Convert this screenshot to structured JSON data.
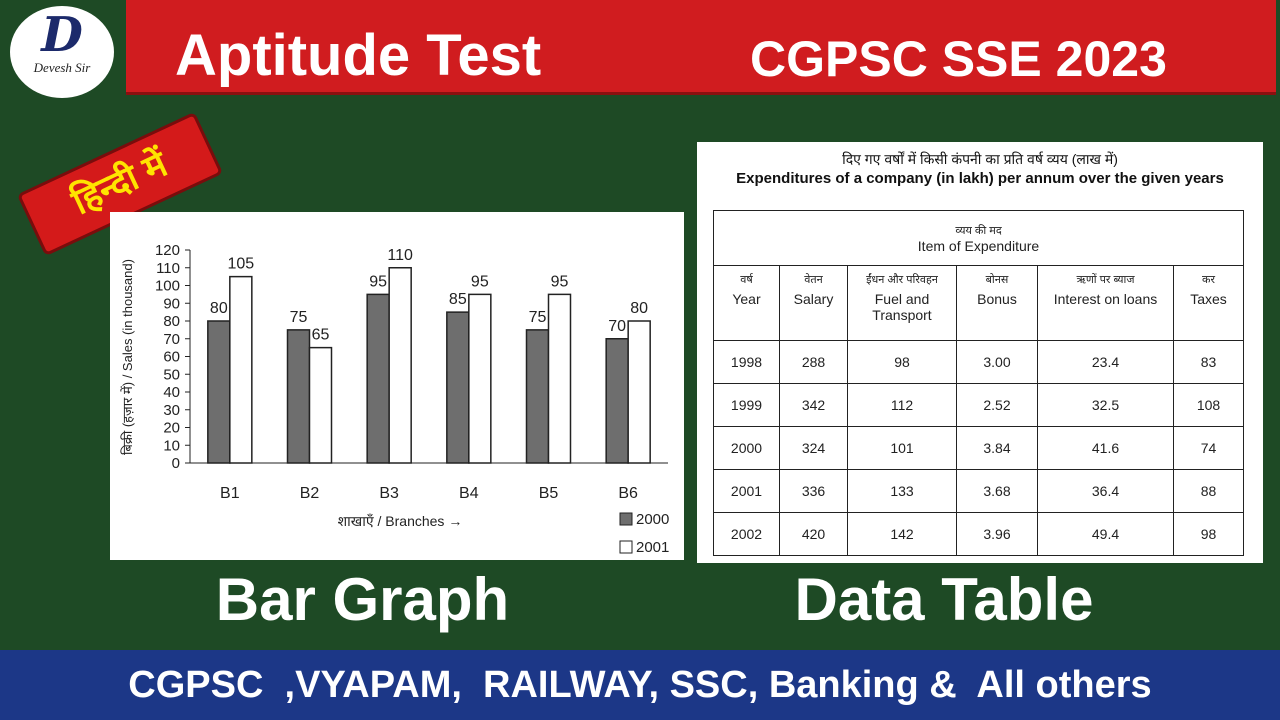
{
  "header": {
    "title": "Aptitude Test",
    "exam": "CGPSC SSE 2023"
  },
  "logo": {
    "letter": "D",
    "name": "Devesh Sir"
  },
  "badge": "हिन्दी में",
  "chart_data": {
    "type": "bar",
    "y_label": "बिक्री (हज़ार में) / Sales (in thousand)",
    "x_label": "शाखाएँ / Branches →",
    "categories": [
      "B1",
      "B2",
      "B3",
      "B4",
      "B5",
      "B6"
    ],
    "series": [
      {
        "name": "2000",
        "color": "#6e6e6e",
        "values": [
          80,
          75,
          95,
          85,
          75,
          70
        ]
      },
      {
        "name": "2001",
        "color": "#ffffff",
        "values": [
          105,
          65,
          110,
          95,
          95,
          80
        ]
      }
    ],
    "ylim": [
      0,
      120
    ],
    "yticks": [
      0,
      10,
      20,
      30,
      40,
      50,
      60,
      70,
      80,
      90,
      100,
      110,
      120
    ],
    "legend": "bottom-right"
  },
  "table": {
    "title_hi": "दिए गए वर्षों में किसी कंपनी का प्रति वर्ष व्यय (लाख में)",
    "title_en": "Expenditures of a company (in lakh) per annum over the given years",
    "group_header": [
      "व्यय की मद",
      "Item of Expenditure"
    ],
    "columns": [
      [
        "वर्ष",
        "Year"
      ],
      [
        "वेतन",
        "Salary"
      ],
      [
        "ईंधन और परिवहन",
        "Fuel and Transport"
      ],
      [
        "बोनस",
        "Bonus"
      ],
      [
        "ऋणों पर ब्याज",
        "Interest on loans"
      ],
      [
        "कर",
        "Taxes"
      ]
    ],
    "rows": [
      [
        "1998",
        "288",
        "98",
        "3.00",
        "23.4",
        "83"
      ],
      [
        "1999",
        "342",
        "112",
        "2.52",
        "32.5",
        "108"
      ],
      [
        "2000",
        "324",
        "101",
        "3.84",
        "41.6",
        "74"
      ],
      [
        "2001",
        "336",
        "133",
        "3.68",
        "36.4",
        "88"
      ],
      [
        "2002",
        "420",
        "142",
        "3.96",
        "49.4",
        "98"
      ]
    ]
  },
  "captions": [
    "Bar Graph",
    "Data Table"
  ],
  "footer": "CGPSC  ,VYAPAM,  RAILWAY, SSC, Banking &  All others"
}
